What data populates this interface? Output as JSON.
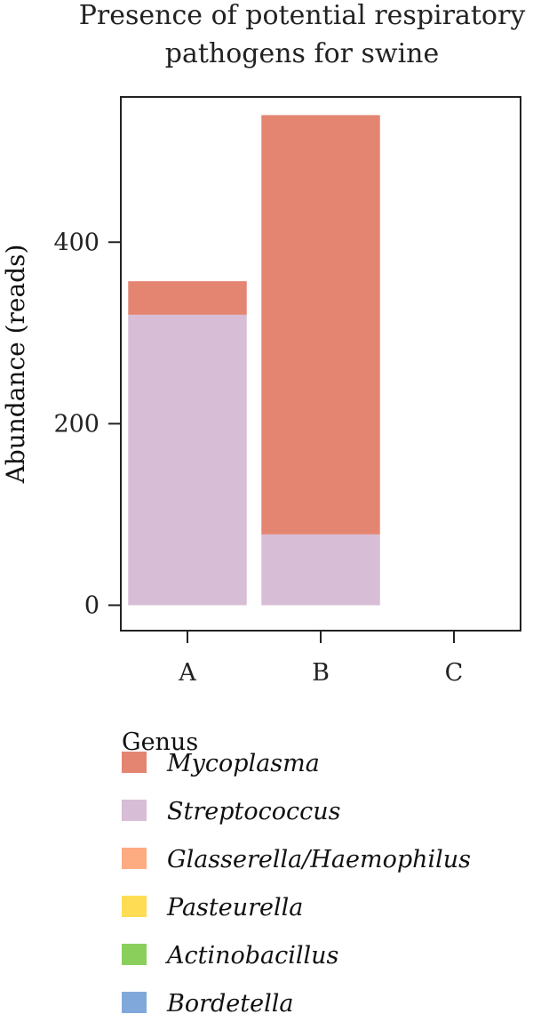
{
  "chart_data": {
    "type": "bar",
    "stacked": true,
    "title": "Presence of potential respiratory pathogens for swine",
    "title_lines": [
      "Presence of potential respiratory",
      "pathogens for swine"
    ],
    "xlabel": "",
    "ylabel": "Abundance (reads)",
    "categories": [
      "A",
      "B",
      "C"
    ],
    "ylim": [
      -28,
      560
    ],
    "yticks": [
      0,
      200,
      400
    ],
    "legend_title": "Genus",
    "legend_position": "bottom",
    "series": [
      {
        "name": "Streptococcus",
        "color": "#d7bdd6",
        "values": [
          320,
          78,
          0
        ]
      },
      {
        "name": "Mycoplasma",
        "color": "#e48572",
        "values": [
          37,
          462,
          0
        ]
      },
      {
        "name": "Glasserella/Haemophilus",
        "color": "#fdab81",
        "values": [
          0,
          0,
          0
        ]
      },
      {
        "name": "Pasteurella",
        "color": "#fedd55",
        "values": [
          0,
          0,
          0
        ]
      },
      {
        "name": "Actinobacillus",
        "color": "#8acf5c",
        "values": [
          0,
          0,
          0
        ]
      },
      {
        "name": "Bordetella",
        "color": "#81a8db",
        "values": [
          0,
          0,
          0
        ]
      }
    ],
    "legend_order": [
      "Mycoplasma",
      "Streptococcus",
      "Glasserella/Haemophilus",
      "Pasteurella",
      "Actinobacillus",
      "Bordetella"
    ]
  }
}
